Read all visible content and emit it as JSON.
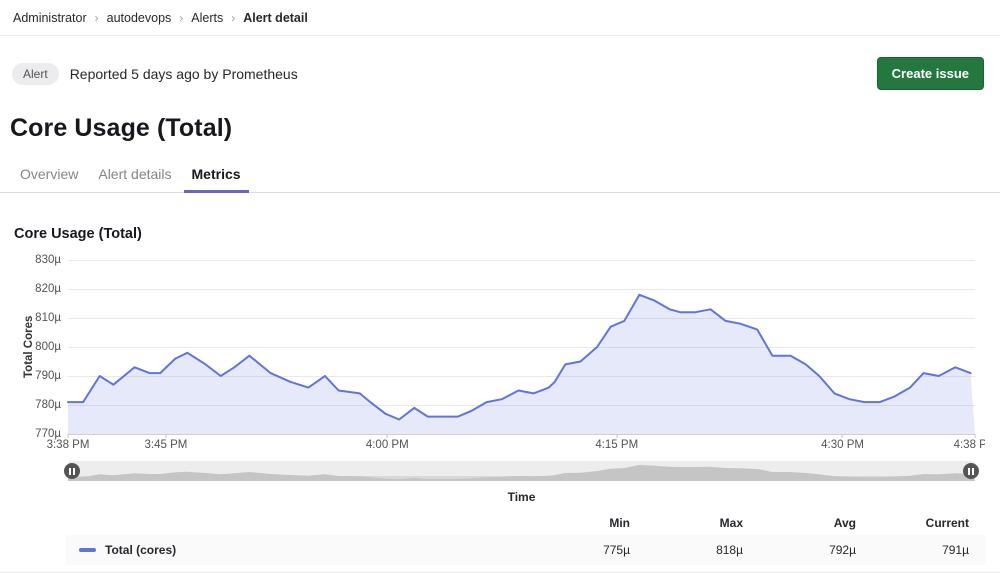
{
  "breadcrumb": {
    "separator": "›",
    "items": [
      "Administrator",
      "autodevops",
      "Alerts",
      "Alert detail"
    ]
  },
  "alert_header": {
    "badge_label": "Alert",
    "reported_text": "Reported 5 days ago by Prometheus",
    "create_issue_label": "Create issue"
  },
  "page_title": "Core Usage (Total)",
  "tabs": {
    "overview": "Overview",
    "alert_details": "Alert details",
    "metrics": "Metrics"
  },
  "colors": {
    "tab_indicator": "#6666c4",
    "button_green": "#24773f",
    "slider_shadow": "#c5c5c5"
  },
  "chart_data": {
    "type": "area",
    "title": "Core Usage (Total)",
    "xlabel": "Time",
    "ylabel": "Total Cores",
    "ylim": [
      770,
      830
    ],
    "y_ticks": [
      "830µ",
      "820µ",
      "810µ",
      "800µ",
      "790µ",
      "780µ",
      "770µ"
    ],
    "x_range_minutes": [
      0,
      60
    ],
    "x_ticks": [
      {
        "label": "3:38 PM",
        "pos": 0
      },
      {
        "label": "3:45 PM",
        "pos": 0.108
      },
      {
        "label": "4:00 PM",
        "pos": 0.352
      },
      {
        "label": "4:15 PM",
        "pos": 0.605
      },
      {
        "label": "4:30 PM",
        "pos": 0.854
      },
      {
        "label": "4:38 PM",
        "pos": 1
      }
    ],
    "grid": true,
    "legend_position": "bottom",
    "series": [
      {
        "name": "Total (cores)",
        "unit": "µ",
        "color": "#6374d9",
        "fill": "rgba(99,116,217,0.16)",
        "points": [
          [
            0,
            781
          ],
          [
            1,
            781
          ],
          [
            2.1,
            790
          ],
          [
            3,
            787
          ],
          [
            4.4,
            793
          ],
          [
            5.4,
            791
          ],
          [
            6.1,
            791
          ],
          [
            7.1,
            796
          ],
          [
            7.9,
            798
          ],
          [
            9.1,
            794
          ],
          [
            10.1,
            790
          ],
          [
            11,
            793
          ],
          [
            12,
            797
          ],
          [
            13.4,
            791
          ],
          [
            14.7,
            788
          ],
          [
            15.9,
            786
          ],
          [
            17,
            790
          ],
          [
            17.9,
            785
          ],
          [
            19.3,
            784
          ],
          [
            20,
            781
          ],
          [
            21,
            777
          ],
          [
            21.9,
            775
          ],
          [
            22.9,
            779
          ],
          [
            23.8,
            776
          ],
          [
            24.9,
            776
          ],
          [
            25.8,
            776
          ],
          [
            26.7,
            778
          ],
          [
            27.7,
            781
          ],
          [
            28.7,
            782
          ],
          [
            29.8,
            785
          ],
          [
            30.8,
            784
          ],
          [
            31.8,
            786
          ],
          [
            32.2,
            788
          ],
          [
            32.9,
            794
          ],
          [
            33.9,
            795
          ],
          [
            35,
            800
          ],
          [
            35.9,
            807
          ],
          [
            36.8,
            809
          ],
          [
            37.8,
            818
          ],
          [
            38.8,
            816
          ],
          [
            39.8,
            813
          ],
          [
            40.5,
            812
          ],
          [
            41.5,
            812
          ],
          [
            42.5,
            813
          ],
          [
            43.5,
            809
          ],
          [
            44.5,
            808
          ],
          [
            45.6,
            806
          ],
          [
            46.6,
            797
          ],
          [
            47.8,
            797
          ],
          [
            48.8,
            794
          ],
          [
            49.7,
            790
          ],
          [
            50.7,
            784
          ],
          [
            51.7,
            782
          ],
          [
            52.7,
            781
          ],
          [
            53.7,
            781
          ],
          [
            54.7,
            783
          ],
          [
            55.7,
            786
          ],
          [
            56.6,
            791
          ],
          [
            57.6,
            790
          ],
          [
            58.7,
            793
          ],
          [
            59.7,
            791
          ]
        ]
      }
    ],
    "stats": {
      "min": "775µ",
      "max": "818µ",
      "avg": "792µ",
      "current": "791µ"
    }
  },
  "legend": {
    "columns": [
      "Min",
      "Max",
      "Avg",
      "Current"
    ],
    "rows": [
      {
        "name": "Total (cores)",
        "values": [
          "775µ",
          "818µ",
          "792µ",
          "791µ"
        ]
      }
    ]
  }
}
